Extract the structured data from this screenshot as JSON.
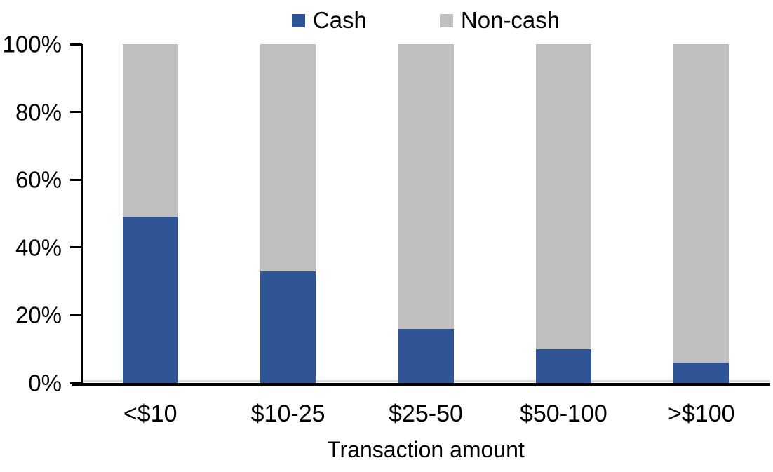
{
  "chart_data": {
    "type": "bar",
    "stacked": true,
    "orientation": "vertical",
    "categories": [
      "<$10",
      "$10-25",
      "$25-50",
      "$50-100",
      ">$100"
    ],
    "series": [
      {
        "name": "Cash",
        "color": "#2F5597",
        "values": [
          49,
          33,
          16,
          10,
          6
        ]
      },
      {
        "name": "Non-cash",
        "color": "#BFBFBF",
        "values": [
          51,
          67,
          84,
          90,
          94
        ]
      }
    ],
    "xlabel": "Transaction amount",
    "ylabel": "",
    "ylim": [
      0,
      100
    ],
    "ytick_values": [
      0,
      20,
      40,
      60,
      80,
      100
    ],
    "ytick_labels": [
      "0%",
      "20%",
      "40%",
      "60%",
      "80%",
      "100%"
    ],
    "legend_position": "top",
    "grid": false,
    "axis_color": "#000000",
    "background_color": "#FFFFFF"
  }
}
